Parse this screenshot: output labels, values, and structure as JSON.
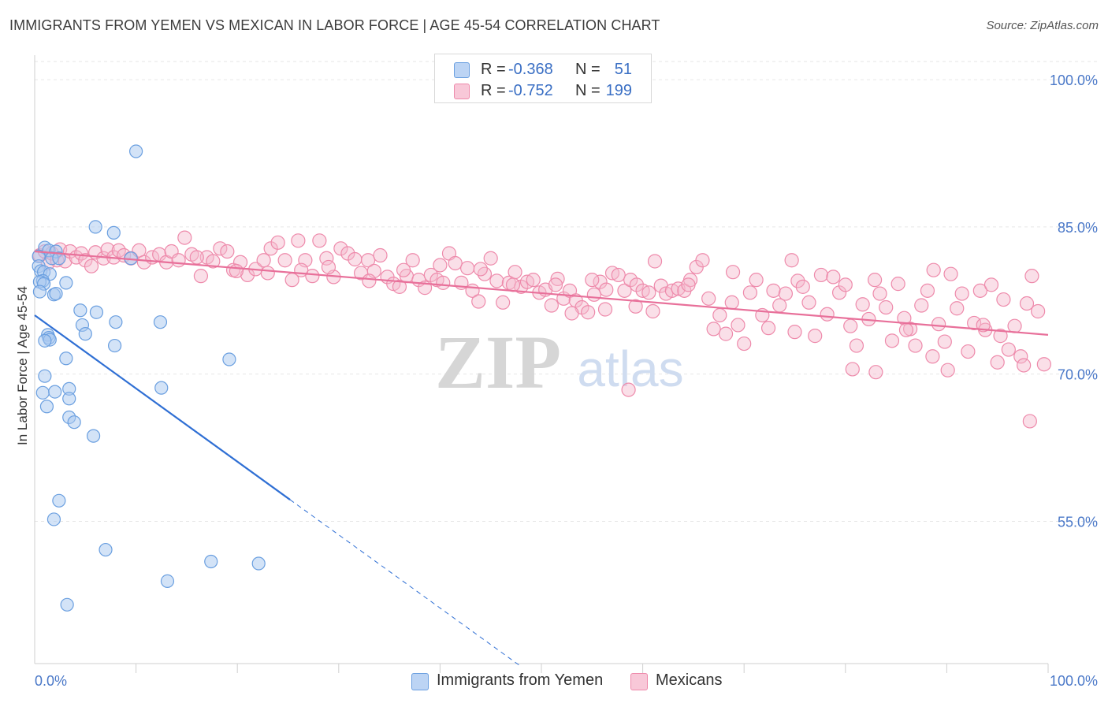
{
  "title": "IMMIGRANTS FROM YEMEN VS MEXICAN IN LABOR FORCE | AGE 45-54 CORRELATION CHART",
  "source": "Source: ZipAtlas.com",
  "watermark": {
    "zip": "ZIP",
    "atlas": "atlas"
  },
  "legend_top": [
    {
      "r_label": "R =",
      "r_value": "-0.368",
      "n_label": "N =",
      "n_value": "51"
    },
    {
      "r_label": "R =",
      "r_value": "-0.752",
      "n_label": "N =",
      "n_value": "199"
    }
  ],
  "legend_bottom": [
    {
      "label": "Immigrants from Yemen"
    },
    {
      "label": "Mexicans"
    }
  ],
  "colors": {
    "yemen_fill": "#a8c8f0",
    "yemen_stroke": "#6a9fe0",
    "yemen_line": "#2f6fd4",
    "mexican_fill": "#f5b8cc",
    "mexican_stroke": "#ee8aab",
    "mexican_line": "#e8709a",
    "tick_label": "#4a78c8",
    "grid": "#e6e6e6"
  },
  "chart_data": {
    "type": "scatter",
    "title": "IMMIGRANTS FROM YEMEN VS MEXICAN IN LABOR FORCE | AGE 45-54 CORRELATION CHART",
    "xlabel": "",
    "ylabel": "In Labor Force | Age 45-54",
    "xlim": [
      0,
      100
    ],
    "ylim": [
      40.5,
      102.5
    ],
    "x_tick_labels": [
      "0.0%",
      "100.0%"
    ],
    "y_ticks": [
      100,
      85,
      70,
      55
    ],
    "y_tick_labels": [
      "100.0%",
      "85.0%",
      "70.0%",
      "55.0%"
    ],
    "grid": true,
    "legend_position": "top-center",
    "series": [
      {
        "name": "Immigrants from Yemen",
        "r": -0.368,
        "n": 51,
        "trend": {
          "x0": 0,
          "y0": 76.0,
          "x1": 25.2,
          "y1": 57.2,
          "dashed_to_x": 48.0,
          "dashed_to_y": 40.2
        },
        "points": [
          [
            10.0,
            92.7
          ],
          [
            6.0,
            85.0
          ],
          [
            7.8,
            84.4
          ],
          [
            1.0,
            82.9
          ],
          [
            1.4,
            82.6
          ],
          [
            2.1,
            82.5
          ],
          [
            0.4,
            82.0
          ],
          [
            1.7,
            81.8
          ],
          [
            2.4,
            81.8
          ],
          [
            9.5,
            81.8
          ],
          [
            0.4,
            81.0
          ],
          [
            0.6,
            80.5
          ],
          [
            0.9,
            80.4
          ],
          [
            1.5,
            80.2
          ],
          [
            0.8,
            79.5
          ],
          [
            0.5,
            79.4
          ],
          [
            0.9,
            79.2
          ],
          [
            3.1,
            79.3
          ],
          [
            0.5,
            78.4
          ],
          [
            1.9,
            78.1
          ],
          [
            2.1,
            78.2
          ],
          [
            4.5,
            76.5
          ],
          [
            6.1,
            76.3
          ],
          [
            4.7,
            75.0
          ],
          [
            8.0,
            75.3
          ],
          [
            12.4,
            75.3
          ],
          [
            5.0,
            74.1
          ],
          [
            1.3,
            74.0
          ],
          [
            1.4,
            73.7
          ],
          [
            1.5,
            73.5
          ],
          [
            1.0,
            73.4
          ],
          [
            7.9,
            72.9
          ],
          [
            3.1,
            71.6
          ],
          [
            19.2,
            71.5
          ],
          [
            1.0,
            69.8
          ],
          [
            3.4,
            68.5
          ],
          [
            12.5,
            68.6
          ],
          [
            0.8,
            68.1
          ],
          [
            2.0,
            68.2
          ],
          [
            3.4,
            67.5
          ],
          [
            1.2,
            66.7
          ],
          [
            3.4,
            65.6
          ],
          [
            3.9,
            65.1
          ],
          [
            5.8,
            63.7
          ],
          [
            2.4,
            57.1
          ],
          [
            1.9,
            55.2
          ],
          [
            7.0,
            52.1
          ],
          [
            17.4,
            50.9
          ],
          [
            22.1,
            50.7
          ],
          [
            13.1,
            48.9
          ],
          [
            3.2,
            46.5
          ]
        ]
      },
      {
        "name": "Mexicans",
        "r": -0.752,
        "n": 199,
        "trend": {
          "x0": 0,
          "y0": 82.5,
          "x1": 100,
          "y1": 74.0
        },
        "points": [
          [
            0.5,
            82.1
          ],
          [
            1.0,
            82.5
          ],
          [
            1.3,
            81.3
          ],
          [
            1.7,
            82.3
          ],
          [
            2.2,
            81.6
          ],
          [
            2.5,
            82.7
          ],
          [
            3.0,
            81.5
          ],
          [
            3.5,
            82.5
          ],
          [
            4.1,
            81.9
          ],
          [
            4.6,
            82.3
          ],
          [
            5.0,
            81.6
          ],
          [
            5.6,
            81.0
          ],
          [
            6.0,
            82.4
          ],
          [
            6.8,
            81.8
          ],
          [
            7.2,
            82.7
          ],
          [
            7.8,
            81.9
          ],
          [
            8.3,
            82.6
          ],
          [
            8.8,
            82.1
          ],
          [
            9.5,
            81.8
          ],
          [
            10.3,
            82.6
          ],
          [
            10.8,
            81.4
          ],
          [
            11.6,
            81.9
          ],
          [
            12.3,
            82.2
          ],
          [
            13.0,
            81.4
          ],
          [
            13.5,
            82.5
          ],
          [
            14.2,
            81.6
          ],
          [
            14.8,
            83.9
          ],
          [
            15.5,
            82.2
          ],
          [
            16.4,
            80.0
          ],
          [
            17.0,
            81.9
          ],
          [
            17.6,
            81.5
          ],
          [
            18.3,
            82.8
          ],
          [
            19.0,
            82.5
          ],
          [
            19.6,
            80.6
          ],
          [
            20.3,
            81.4
          ],
          [
            21.0,
            80.1
          ],
          [
            21.8,
            80.7
          ],
          [
            22.6,
            81.6
          ],
          [
            23.3,
            82.8
          ],
          [
            24.0,
            83.4
          ],
          [
            24.7,
            81.6
          ],
          [
            25.4,
            79.6
          ],
          [
            26.0,
            83.6
          ],
          [
            26.7,
            81.6
          ],
          [
            27.4,
            80.0
          ],
          [
            28.1,
            83.6
          ],
          [
            28.8,
            81.8
          ],
          [
            29.5,
            79.9
          ],
          [
            30.2,
            82.8
          ],
          [
            30.9,
            82.3
          ],
          [
            31.6,
            81.7
          ],
          [
            32.2,
            80.3
          ],
          [
            32.9,
            81.6
          ],
          [
            33.5,
            80.5
          ],
          [
            34.1,
            82.1
          ],
          [
            34.8,
            79.9
          ],
          [
            35.4,
            79.2
          ],
          [
            36.0,
            78.9
          ],
          [
            36.7,
            80.0
          ],
          [
            37.3,
            81.6
          ],
          [
            37.9,
            79.6
          ],
          [
            38.5,
            78.8
          ],
          [
            39.1,
            80.1
          ],
          [
            39.7,
            79.6
          ],
          [
            40.3,
            79.3
          ],
          [
            40.9,
            82.3
          ],
          [
            41.5,
            81.3
          ],
          [
            42.1,
            79.3
          ],
          [
            42.7,
            80.8
          ],
          [
            43.2,
            78.5
          ],
          [
            43.8,
            77.4
          ],
          [
            44.4,
            80.2
          ],
          [
            45.0,
            81.8
          ],
          [
            45.6,
            79.5
          ],
          [
            46.2,
            77.3
          ],
          [
            46.8,
            79.3
          ],
          [
            47.4,
            80.4
          ],
          [
            48.0,
            78.9
          ],
          [
            48.6,
            79.4
          ],
          [
            49.2,
            79.6
          ],
          [
            49.8,
            78.3
          ],
          [
            50.4,
            78.6
          ],
          [
            51.0,
            77.0
          ],
          [
            51.6,
            79.7
          ],
          [
            52.2,
            77.7
          ],
          [
            52.8,
            78.5
          ],
          [
            53.4,
            77.5
          ],
          [
            54.0,
            76.8
          ],
          [
            54.6,
            76.3
          ],
          [
            55.2,
            78.1
          ],
          [
            55.8,
            79.4
          ],
          [
            56.4,
            78.6
          ],
          [
            57.0,
            80.3
          ],
          [
            57.6,
            80.1
          ],
          [
            58.2,
            78.5
          ],
          [
            58.8,
            79.6
          ],
          [
            59.4,
            79.1
          ],
          [
            60.0,
            78.5
          ],
          [
            60.6,
            78.3
          ],
          [
            61.2,
            81.5
          ],
          [
            61.8,
            79.0
          ],
          [
            62.3,
            78.2
          ],
          [
            62.9,
            78.5
          ],
          [
            63.5,
            78.7
          ],
          [
            64.1,
            78.5
          ],
          [
            64.7,
            79.6
          ],
          [
            65.3,
            80.9
          ],
          [
            65.9,
            81.6
          ],
          [
            66.5,
            77.7
          ],
          [
            67.0,
            74.6
          ],
          [
            67.6,
            76.0
          ],
          [
            68.2,
            74.1
          ],
          [
            68.8,
            77.3
          ],
          [
            69.4,
            75.0
          ],
          [
            70.0,
            73.1
          ],
          [
            70.6,
            78.3
          ],
          [
            71.2,
            79.6
          ],
          [
            71.8,
            76.0
          ],
          [
            72.4,
            74.7
          ],
          [
            72.9,
            78.5
          ],
          [
            73.5,
            77.0
          ],
          [
            74.1,
            78.2
          ],
          [
            74.7,
            81.6
          ],
          [
            75.3,
            79.5
          ],
          [
            75.8,
            78.9
          ],
          [
            76.4,
            77.3
          ],
          [
            77.0,
            73.9
          ],
          [
            77.6,
            80.1
          ],
          [
            78.2,
            76.1
          ],
          [
            78.8,
            79.9
          ],
          [
            79.4,
            78.3
          ],
          [
            80.0,
            79.1
          ],
          [
            80.5,
            74.9
          ],
          [
            81.1,
            72.9
          ],
          [
            81.7,
            77.1
          ],
          [
            82.3,
            75.6
          ],
          [
            82.9,
            79.6
          ],
          [
            83.4,
            78.2
          ],
          [
            84.0,
            76.8
          ],
          [
            84.6,
            73.4
          ],
          [
            85.2,
            79.2
          ],
          [
            85.8,
            75.7
          ],
          [
            86.4,
            74.6
          ],
          [
            86.9,
            72.9
          ],
          [
            87.5,
            77.0
          ],
          [
            88.1,
            78.5
          ],
          [
            88.6,
            71.8
          ],
          [
            89.2,
            75.1
          ],
          [
            89.8,
            73.3
          ],
          [
            90.4,
            80.2
          ],
          [
            91.0,
            76.7
          ],
          [
            91.5,
            78.2
          ],
          [
            92.1,
            72.3
          ],
          [
            92.7,
            75.2
          ],
          [
            93.3,
            78.5
          ],
          [
            93.8,
            74.5
          ],
          [
            94.4,
            79.1
          ],
          [
            95.0,
            71.2
          ],
          [
            95.6,
            77.6
          ],
          [
            96.1,
            72.5
          ],
          [
            96.7,
            74.9
          ],
          [
            97.3,
            71.8
          ],
          [
            97.9,
            77.2
          ],
          [
            98.4,
            80.0
          ],
          [
            99.0,
            76.4
          ],
          [
            99.6,
            71.0
          ],
          [
            58.6,
            68.4
          ],
          [
            53.0,
            76.2
          ],
          [
            56.3,
            76.6
          ],
          [
            68.9,
            80.4
          ],
          [
            75.0,
            74.3
          ],
          [
            80.7,
            70.5
          ],
          [
            83.0,
            70.2
          ],
          [
            90.1,
            70.4
          ],
          [
            86.0,
            74.5
          ],
          [
            88.7,
            80.6
          ],
          [
            93.6,
            75.0
          ],
          [
            95.3,
            73.9
          ],
          [
            97.6,
            70.9
          ],
          [
            98.2,
            65.2
          ],
          [
            64.5,
            79.1
          ],
          [
            61.0,
            76.4
          ],
          [
            59.3,
            76.9
          ],
          [
            55.0,
            79.6
          ],
          [
            51.4,
            79.1
          ],
          [
            47.2,
            79.1
          ],
          [
            44.0,
            80.7
          ],
          [
            40.0,
            81.1
          ],
          [
            36.4,
            80.6
          ],
          [
            33.0,
            79.5
          ],
          [
            29.0,
            80.9
          ],
          [
            26.3,
            80.6
          ],
          [
            23.0,
            80.3
          ],
          [
            19.9,
            80.5
          ],
          [
            16.0,
            81.9
          ]
        ]
      }
    ]
  }
}
